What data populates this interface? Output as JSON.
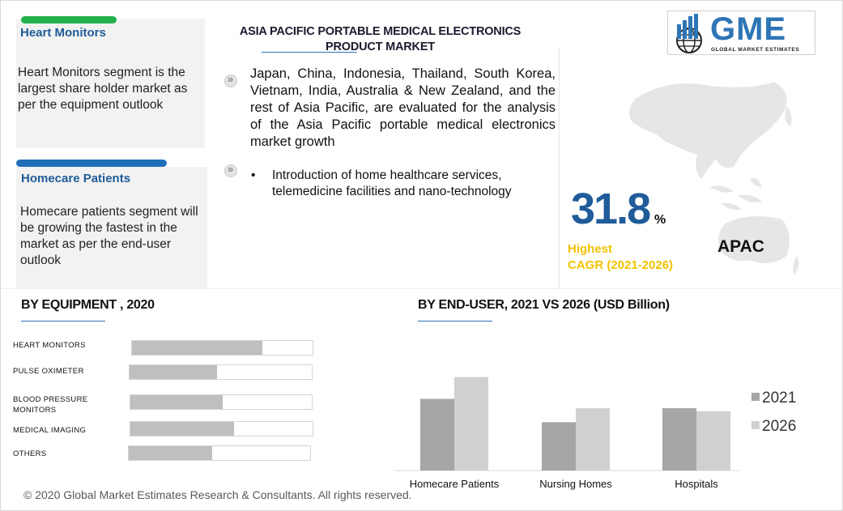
{
  "title": "ASIA PACIFIC PORTABLE MEDICAL ELECTRONICS PRODUCT MARKET",
  "logo": {
    "text": "GME",
    "subtitle": "GLOBAL MARKET ESTIMATES"
  },
  "cards": [
    {
      "title": "Heart Monitors",
      "text": "Heart Monitors segment is the largest share holder market as per the equipment outlook",
      "bar_color": "#22b14c"
    },
    {
      "title": "Homecare Patients",
      "text": "Homecare patients segment will be growing the fastest in the market as per the end-user outlook",
      "bar_color": "#1f6fb8"
    }
  ],
  "bullets": [
    {
      "text": "Japan, China, Indonesia, Thailand, South Korea, Vietnam, India, Australia & New Zealand, and the rest of Asia Pacific, are evaluated for the analysis of the Asia Pacific portable medical electronics  market growth"
    },
    {
      "dot": "•",
      "text": "Introduction of home healthcare services, telemedicine facilities and nano-technology"
    }
  ],
  "stat": {
    "value": "31.8",
    "unit": "%",
    "label_line1": "Highest",
    "label_line2": "CAGR (2021-2026)",
    "region": "APAC"
  },
  "footer": "© 2020 Global Market Estimates Research & Consultants. All rights reserved.",
  "colors": {
    "accent": "#1f5c99",
    "highlight": "#f2c200",
    "bar_2021": "#a6a6a6",
    "bar_2026": "#d0d0d0"
  },
  "chart_data": [
    {
      "type": "bar",
      "orientation": "horizontal",
      "title": "BY  EQUIPMENT , 2020",
      "categories": [
        "HEART MONITORS",
        "PULSE OXIMETER",
        "BLOOD PRESSURE MONITORS",
        "MEDICAL  IMAGING",
        "OTHERS"
      ],
      "values": [
        0.72,
        0.48,
        0.51,
        0.57,
        0.46
      ],
      "grid": false
    },
    {
      "type": "bar",
      "title": "BY  END-USER,  2021 VS 2026 (USD Billion)",
      "categories": [
        "Homecare Patients",
        "Nursing Homes",
        "Hospitals"
      ],
      "series": [
        {
          "name": "2021",
          "values": [
            4.6,
            3.1,
            4.0
          ]
        },
        {
          "name": "2026",
          "values": [
            6.0,
            4.0,
            3.8
          ]
        }
      ],
      "ylim": [
        0,
        6.5
      ],
      "legend": "right",
      "grid": false
    }
  ]
}
